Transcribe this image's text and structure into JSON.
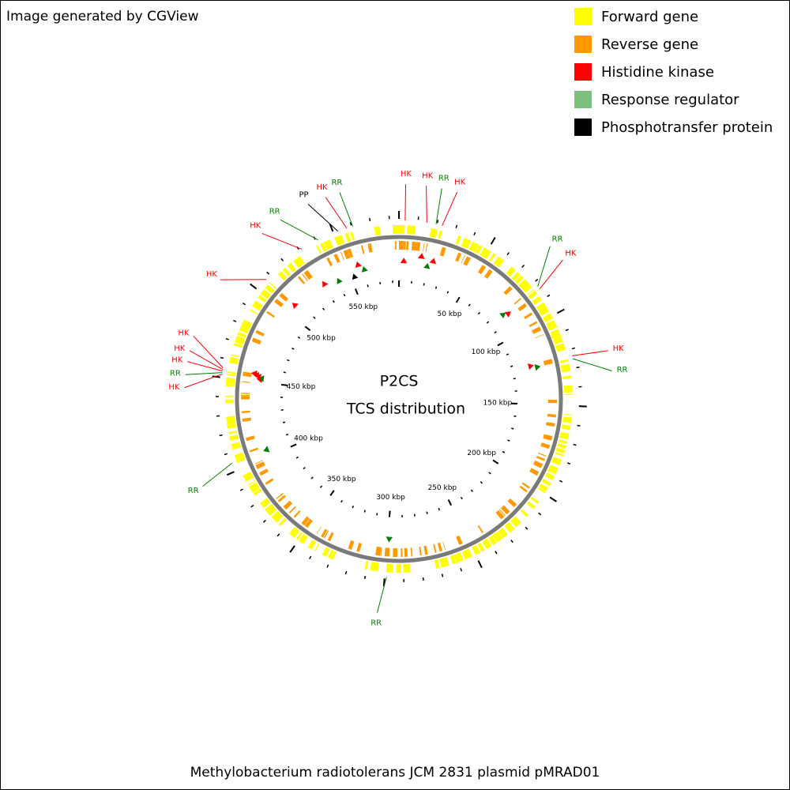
{
  "header": {
    "credit": "Image generated by CGView"
  },
  "legend": [
    {
      "label": "Forward gene",
      "color": "#ffff00"
    },
    {
      "label": "Reverse gene",
      "color": "#ff9900"
    },
    {
      "label": "Histidine kinase",
      "color": "#ff0000"
    },
    {
      "label": "Response regulator",
      "color": "#7fbf7f"
    },
    {
      "label": "Phosphotransfer protein",
      "color": "#000000"
    }
  ],
  "map": {
    "title": "P2CS",
    "subtitle": "TCS distribution",
    "scale_labels": [
      "50 kbp",
      "100 kbp",
      "150 kbp",
      "200 kbp",
      "250 kbp",
      "300 kbp",
      "350 kbp",
      "400 kbp",
      "450 kbp",
      "500 kbp",
      "550 kbp"
    ],
    "features": [
      {
        "label": "HK",
        "color": "#ff0000"
      },
      {
        "label": "HK",
        "color": "#ff0000"
      },
      {
        "label": "RR",
        "color": "#008000"
      },
      {
        "label": "HK",
        "color": "#ff0000"
      },
      {
        "label": "RR",
        "color": "#008000"
      },
      {
        "label": "HK",
        "color": "#ff0000"
      },
      {
        "label": "HK",
        "color": "#ff0000"
      },
      {
        "label": "RR",
        "color": "#008000"
      },
      {
        "label": "RR",
        "color": "#008000"
      },
      {
        "label": "RR",
        "color": "#008000"
      },
      {
        "label": "HK",
        "color": "#ff0000"
      },
      {
        "label": "RR",
        "color": "#008000"
      },
      {
        "label": "HK",
        "color": "#ff0000"
      },
      {
        "label": "HK",
        "color": "#ff0000"
      },
      {
        "label": "HK",
        "color": "#ff0000"
      },
      {
        "label": "HK",
        "color": "#ff0000"
      },
      {
        "label": "HK",
        "color": "#ff0000"
      },
      {
        "label": "RR",
        "color": "#008000"
      },
      {
        "label": "PP",
        "color": "#000000"
      },
      {
        "label": "HK",
        "color": "#ff0000"
      },
      {
        "label": "RR",
        "color": "#008000"
      }
    ]
  },
  "caption": "Methylobacterium radiotolerans JCM 2831 plasmid pMRAD01"
}
